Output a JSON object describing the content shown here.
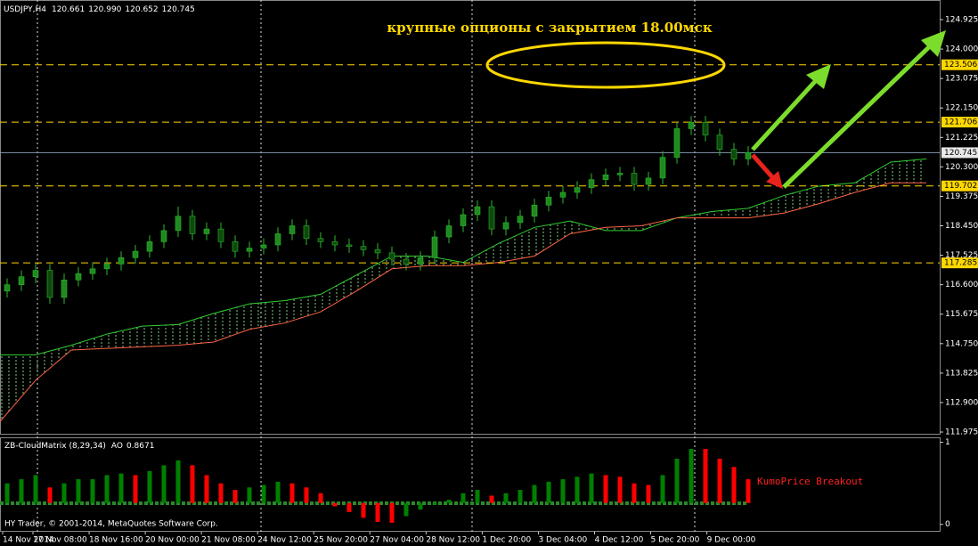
{
  "chart_data": [
    {
      "type": "candlestick",
      "symbol": "USDJPY,H4",
      "quote": [
        120.661,
        {
          "value": 120.99,
          "label": "120.990"
        },
        120.652,
        120.745
      ],
      "annotation": "крупные опционы с закрытием 18.00мск",
      "copyright": "HY Trader, © 2001-2014, MetaQuotes Software Corp.",
      "x_labels": [
        "14 Nov 2014",
        "17 Nov 08:00",
        "18 Nov 16:00",
        "20 Nov 00:00",
        "21 Nov 08:00",
        "24 Nov 12:00",
        "25 Nov 20:00",
        "27 Nov 04:00",
        "28 Nov 12:00",
        "1 Dec 20:00",
        "3 Dec 04:00",
        "4 Dec 12:00",
        "5 Dec 20:00",
        "9 Dec 00:00"
      ],
      "open": [
        116.4,
        116.6,
        116.85,
        117.05,
        116.2,
        116.75,
        116.95,
        117.1,
        117.25,
        117.45,
        117.65,
        117.95,
        118.3,
        118.75,
        118.2,
        118.35,
        117.95,
        117.65,
        117.75,
        117.85,
        118.2,
        118.45,
        118.05,
        117.95,
        117.85,
        117.8,
        117.7,
        117.6,
        117.4,
        117.25,
        117.45,
        118.1,
        118.45,
        118.8,
        119.05,
        118.35,
        118.55,
        118.75,
        119.1,
        119.35,
        119.5,
        119.65,
        119.9,
        120.05,
        120.1,
        119.75,
        119.95,
        120.6,
        121.5,
        121.7,
        121.3,
        120.85,
        120.55
      ],
      "high": [
        116.8,
        117.05,
        117.25,
        117.25,
        116.95,
        117.15,
        117.3,
        117.45,
        117.65,
        117.85,
        118.15,
        118.5,
        119.05,
        118.95,
        118.55,
        118.55,
        118.15,
        117.95,
        118.05,
        118.4,
        118.65,
        118.65,
        118.25,
        118.15,
        118.05,
        118.0,
        117.9,
        117.8,
        117.6,
        117.65,
        118.3,
        118.65,
        119.0,
        119.25,
        119.25,
        118.75,
        118.95,
        119.3,
        119.55,
        119.7,
        119.85,
        120.1,
        120.25,
        120.3,
        120.3,
        120.15,
        120.8,
        121.7,
        121.9,
        121.9,
        121.5,
        121.05,
        120.95
      ],
      "low": [
        116.2,
        116.4,
        116.65,
        116.0,
        116.0,
        116.55,
        116.75,
        116.9,
        117.05,
        117.25,
        117.45,
        117.75,
        118.1,
        118.0,
        118.0,
        117.75,
        117.45,
        117.45,
        117.55,
        117.65,
        118.0,
        117.85,
        117.75,
        117.65,
        117.6,
        117.5,
        117.4,
        117.2,
        117.05,
        117.05,
        117.25,
        117.9,
        118.25,
        118.6,
        118.15,
        118.15,
        118.35,
        118.55,
        118.9,
        119.15,
        119.3,
        119.45,
        119.7,
        119.85,
        119.55,
        119.55,
        119.75,
        120.4,
        121.3,
        121.1,
        120.65,
        120.35,
        120.35
      ],
      "close": [
        116.6,
        116.85,
        117.05,
        116.2,
        116.75,
        116.95,
        117.1,
        117.25,
        117.45,
        117.65,
        117.95,
        118.3,
        118.75,
        118.2,
        118.35,
        117.95,
        117.65,
        117.75,
        117.85,
        118.2,
        118.45,
        118.05,
        117.95,
        117.85,
        117.8,
        117.7,
        117.6,
        117.4,
        117.25,
        117.45,
        118.1,
        118.45,
        118.8,
        119.05,
        118.35,
        118.55,
        118.75,
        119.1,
        119.35,
        119.5,
        119.65,
        119.9,
        120.05,
        120.1,
        119.75,
        119.95,
        120.6,
        121.5,
        121.7,
        121.3,
        120.85,
        120.55,
        120.75
      ],
      "up_color": "#1f8a1f",
      "down_color": "#0d4a0d",
      "cloud": [
        {
          "color": "#32cd32",
          "values": [
            114.4,
            114.4,
            114.7,
            115.05,
            115.3,
            115.35,
            115.7,
            116.0,
            116.1,
            116.3,
            116.9,
            117.5,
            117.5,
            117.3,
            117.9,
            118.4,
            118.6,
            118.3,
            118.3,
            118.7,
            118.9,
            119.0,
            119.4,
            119.7,
            119.8,
            120.45,
            120.55
          ]
        },
        {
          "color": "#ff6347",
          "values": [
            112.3,
            113.6,
            114.55,
            114.6,
            114.65,
            114.7,
            114.8,
            115.2,
            115.4,
            115.75,
            116.4,
            117.1,
            117.2,
            117.2,
            117.3,
            117.5,
            118.2,
            118.4,
            118.45,
            118.7,
            118.7,
            118.7,
            118.85,
            119.15,
            119.5,
            119.8,
            119.8
          ]
        }
      ],
      "levels": [
        123.506,
        121.706,
        119.702,
        117.285
      ],
      "level_color": "#ffd700",
      "current_price": 120.745,
      "ylim": [
        111.92,
        125.54
      ],
      "yticks": [
        124.925,
        {
          "value": 124,
          "label": "124.000"
        },
        123.075,
        {
          "value": 122.15,
          "label": "122.150"
        },
        121.225,
        {
          "value": 120.3,
          "label": "120.300"
        },
        119.375,
        {
          "value": 118.45,
          "label": "118.450"
        },
        117.525,
        {
          "value": 116.6,
          "label": "116.600"
        },
        115.675,
        {
          "value": 114.75,
          "label": "114.750"
        },
        113.825,
        {
          "value": 112.9,
          "label": "112.900"
        },
        111.975
      ]
    },
    {
      "type": "histogram",
      "title": "ZB-CloudMatrix (8,29,34)",
      "ao_label": "AO",
      "ao_value": 0.8671,
      "annotation": "KumoPrice Breakout",
      "baseline": 0.26,
      "values": [
        0.5,
        0.55,
        0.6,
        0.45,
        0.5,
        0.55,
        0.55,
        0.6,
        0.62,
        0.6,
        0.65,
        0.72,
        0.78,
        0.72,
        0.6,
        0.5,
        0.42,
        0.45,
        0.48,
        0.52,
        0.5,
        0.45,
        0.38,
        0.22,
        0.15,
        0.08,
        0.03,
        0.02,
        0.1,
        0.18,
        0.24,
        0.3,
        0.38,
        0.42,
        0.35,
        0.38,
        0.42,
        0.48,
        0.52,
        0.55,
        0.58,
        0.62,
        0.6,
        0.58,
        0.5,
        0.48,
        0.6,
        0.8,
        0.92,
        0.92,
        0.8,
        0.7,
        0.55
      ],
      "colors": [
        "#008000",
        "#008000",
        "#008000",
        "#ff0000",
        "#008000",
        "#008000",
        "#008000",
        "#008000",
        "#008000",
        "#ff0000",
        "#008000",
        "#008000",
        "#008000",
        "#ff0000",
        "#ff0000",
        "#ff0000",
        "#ff0000",
        "#008000",
        "#008000",
        "#008000",
        "#ff0000",
        "#ff0000",
        "#ff0000",
        "#ff0000",
        "#ff0000",
        "#ff0000",
        "#ff0000",
        "#ff0000",
        "#008000",
        "#008000",
        "#008000",
        "#008000",
        "#008000",
        "#008000",
        "#ff0000",
        "#008000",
        "#008000",
        "#008000",
        "#008000",
        "#008000",
        "#008000",
        "#008000",
        "#ff0000",
        "#ff0000",
        "#ff0000",
        "#ff0000",
        "#008000",
        "#008000",
        "#008000",
        "#ff0000",
        "#ff0000",
        "#ff0000",
        "#ff0000"
      ],
      "ylim": [
        -0.09,
        1.05
      ],
      "yticks": [
        0,
        1
      ]
    }
  ]
}
